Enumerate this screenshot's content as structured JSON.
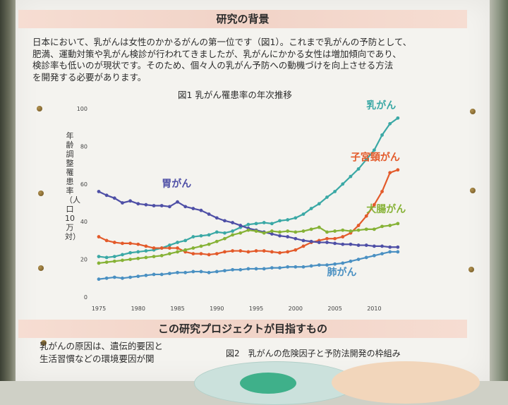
{
  "header": {
    "title": "研究の背景"
  },
  "intro_lines": [
    "日本において、乳がんは女性のかかるがんの第一位です（図1）。これまで乳がんの予防として、",
    "肥満、運動対策や乳がん検診が行われてきましたが、乳がんにかかる女性は増加傾向であり、",
    "検診率も低いのが現状です。そのため、個々人の乳がん予防への動機づけを向上させる方法",
    "を開発する必要があります。"
  ],
  "section2": {
    "title": "この研究プロジェクトが目指すもの"
  },
  "bottom_text": {
    "line1": "乳がんの原因は、遺伝的要因と",
    "line2": "生活習慣などの環境要因が関"
  },
  "figure2": {
    "title": "図2　乳がんの危険因子と予防法開発の枠組み"
  },
  "chart_data": {
    "type": "line",
    "title": "図1 乳がん罹患率の年次推移",
    "ylabel": "年齢調整罹患率（人口10万対）",
    "xlabel": "",
    "x_ticks": [
      1975,
      1980,
      1985,
      1990,
      1995,
      2000,
      2005,
      2010
    ],
    "y_ticks": [
      0,
      20,
      40,
      60,
      80,
      100
    ],
    "xlim": [
      1975,
      2014
    ],
    "ylim": [
      0,
      100
    ],
    "grid": false,
    "x": [
      1975,
      1976,
      1977,
      1978,
      1979,
      1980,
      1981,
      1982,
      1983,
      1984,
      1985,
      1986,
      1987,
      1988,
      1989,
      1990,
      1991,
      1992,
      1993,
      1994,
      1995,
      1996,
      1997,
      1998,
      1999,
      2000,
      2001,
      2002,
      2003,
      2004,
      2005,
      2006,
      2007,
      2008,
      2009,
      2010,
      2011,
      2012,
      2013
    ],
    "series": [
      {
        "name": "乳がん",
        "color": "#3aa8a5",
        "label_pos": [
          2009,
          100
        ],
        "values": [
          21.5,
          21,
          21.5,
          22.5,
          23.5,
          24,
          24.5,
          25,
          26,
          27.5,
          29,
          30,
          32,
          32.5,
          33,
          34.5,
          34,
          35,
          37,
          38.5,
          39,
          39.5,
          39,
          40.5,
          41,
          42,
          44,
          47,
          49.5,
          53,
          56,
          60,
          64,
          68,
          73,
          78,
          86,
          92,
          95
        ]
      },
      {
        "name": "子宮頸がん",
        "color": "#e35a2a",
        "label_pos": [
          2007,
          72.5
        ],
        "values": [
          32,
          30,
          29,
          28.5,
          28.5,
          28,
          27,
          26,
          26,
          26,
          26,
          24,
          23,
          23,
          22.5,
          23,
          24,
          24.5,
          24.5,
          24,
          24.5,
          24.5,
          24,
          23.5,
          24,
          25,
          27,
          29,
          30,
          31,
          31,
          32,
          34,
          38,
          43,
          49,
          56,
          66,
          67.5
        ]
      },
      {
        "name": "胃がん",
        "color": "#4e4fa6",
        "label_pos": [
          1983,
          58.5
        ],
        "values": [
          56,
          54,
          52.5,
          50,
          51,
          49.5,
          49,
          48.5,
          48.5,
          48,
          50.5,
          48,
          47,
          46,
          44,
          42,
          40.5,
          39.5,
          38,
          36.5,
          35.5,
          34.5,
          33.5,
          32.5,
          32,
          31,
          30,
          29.5,
          29,
          29,
          28.5,
          28,
          28,
          27.5,
          27.5,
          27,
          27,
          26.5,
          26.5
        ]
      },
      {
        "name": "大腸がん",
        "color": "#86b236",
        "label_pos": [
          2009,
          45
        ],
        "values": [
          18,
          18.5,
          19,
          19.5,
          20,
          20.5,
          21,
          21.5,
          22,
          23,
          24,
          25,
          26,
          27,
          28,
          29.5,
          31,
          33,
          34,
          35.5,
          35,
          34,
          35,
          34.5,
          35,
          34.5,
          35,
          36,
          37,
          34.5,
          35,
          35.5,
          35,
          35.5,
          36,
          36,
          37.5,
          38,
          39
        ]
      },
      {
        "name": "肺がん",
        "color": "#4a90c2",
        "label_pos": [
          2004,
          11.5
        ],
        "values": [
          9.5,
          10,
          10.5,
          10,
          10.5,
          11,
          11.5,
          12,
          12,
          12.5,
          13,
          13,
          13.5,
          13.5,
          13,
          13.5,
          14,
          14.5,
          14.5,
          15,
          15,
          15,
          15.5,
          15.5,
          16,
          16,
          16,
          16.5,
          17,
          17,
          17.5,
          18,
          19,
          20,
          21,
          22,
          23,
          24,
          24
        ]
      }
    ]
  }
}
